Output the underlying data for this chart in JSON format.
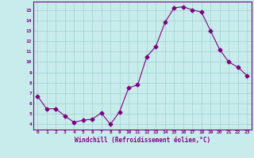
{
  "x": [
    0,
    1,
    2,
    3,
    4,
    5,
    6,
    7,
    8,
    9,
    10,
    11,
    12,
    13,
    14,
    15,
    16,
    17,
    18,
    19,
    20,
    21,
    22,
    23
  ],
  "y": [
    6.7,
    5.5,
    5.5,
    4.8,
    4.2,
    4.4,
    4.5,
    5.1,
    4.0,
    5.2,
    7.5,
    7.8,
    10.5,
    11.5,
    13.8,
    15.2,
    15.3,
    15.0,
    14.8,
    13.0,
    11.2,
    10.0,
    9.5,
    8.7
  ],
  "line_color": "#800080",
  "marker": "D",
  "marker_size": 2.5,
  "bg_color": "#c8ecec",
  "grid_color": "#a0d0d0",
  "tick_color": "#800080",
  "label_color": "#800080",
  "xlabel": "Windchill (Refroidissement éolien,°C)",
  "xlim": [
    -0.5,
    23.5
  ],
  "ylim": [
    3.5,
    15.8
  ],
  "yticks": [
    4,
    5,
    6,
    7,
    8,
    9,
    10,
    11,
    12,
    13,
    14,
    15
  ],
  "xticks": [
    0,
    1,
    2,
    3,
    4,
    5,
    6,
    7,
    8,
    9,
    10,
    11,
    12,
    13,
    14,
    15,
    16,
    17,
    18,
    19,
    20,
    21,
    22,
    23
  ]
}
